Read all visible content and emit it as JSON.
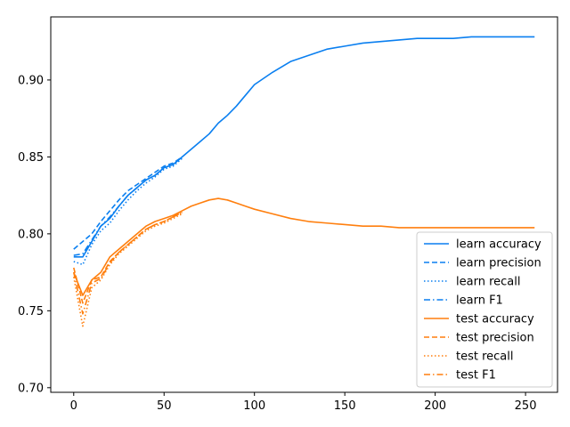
{
  "chart_data": {
    "type": "line",
    "title": "",
    "xlabel": "",
    "ylabel": "",
    "xlim": [
      -12.7,
      267.7
    ],
    "ylim": [
      0.697,
      0.941
    ],
    "x_ticks": [
      0,
      50,
      100,
      150,
      200,
      250
    ],
    "x_tick_labels": [
      "0",
      "50",
      "100",
      "150",
      "200",
      "250"
    ],
    "y_ticks": [
      0.7,
      0.75,
      0.8,
      0.85,
      0.9
    ],
    "y_tick_labels": [
      "0.70",
      "0.75",
      "0.80",
      "0.85",
      "0.90"
    ],
    "grid": false,
    "legend_position": "lower-right",
    "x_range": [
      0,
      255
    ],
    "series": [
      {
        "name": "learn accuracy",
        "color": "#0a7ff0",
        "dash": "solid",
        "x": [
          0,
          5,
          10,
          15,
          20,
          25,
          30,
          35,
          40,
          45,
          50,
          55,
          60,
          65,
          70,
          75,
          80,
          85,
          90,
          95,
          100,
          110,
          120,
          130,
          140,
          150,
          160,
          170,
          180,
          190,
          200,
          210,
          220,
          230,
          240,
          255
        ],
        "values": [
          0.785,
          0.785,
          0.795,
          0.805,
          0.81,
          0.818,
          0.825,
          0.83,
          0.835,
          0.838,
          0.843,
          0.845,
          0.85,
          0.855,
          0.86,
          0.865,
          0.872,
          0.877,
          0.883,
          0.89,
          0.897,
          0.905,
          0.912,
          0.916,
          0.92,
          0.922,
          0.924,
          0.925,
          0.926,
          0.927,
          0.927,
          0.927,
          0.928,
          0.928,
          0.928,
          0.928
        ]
      },
      {
        "name": "learn precision",
        "color": "#0a7ff0",
        "dash": "dashed",
        "x": [
          0,
          5,
          10,
          15,
          20,
          25,
          30,
          35,
          40,
          45,
          50,
          55,
          60
        ],
        "values": [
          0.79,
          0.795,
          0.8,
          0.808,
          0.815,
          0.822,
          0.828,
          0.832,
          0.836,
          0.84,
          0.844,
          0.846,
          0.85
        ]
      },
      {
        "name": "learn recall",
        "color": "#0a7ff0",
        "dash": "dotted",
        "x": [
          0,
          5,
          10,
          15,
          20,
          25,
          30,
          35,
          40,
          45,
          50,
          55,
          60
        ],
        "values": [
          0.782,
          0.78,
          0.793,
          0.802,
          0.807,
          0.815,
          0.822,
          0.828,
          0.833,
          0.837,
          0.842,
          0.844,
          0.849
        ]
      },
      {
        "name": "learn F1",
        "color": "#0a7ff0",
        "dash": "dashdot",
        "x": [
          0,
          5,
          10,
          15,
          20,
          25,
          30,
          35,
          40,
          45,
          50,
          55,
          60
        ],
        "values": [
          0.786,
          0.787,
          0.796,
          0.805,
          0.811,
          0.818,
          0.825,
          0.83,
          0.835,
          0.838,
          0.843,
          0.845,
          0.85
        ]
      },
      {
        "name": "test accuracy",
        "color": "#ff7f0e",
        "dash": "solid",
        "x": [
          0,
          5,
          10,
          15,
          20,
          25,
          30,
          35,
          40,
          45,
          50,
          55,
          60,
          65,
          70,
          75,
          80,
          85,
          90,
          95,
          100,
          110,
          120,
          130,
          140,
          150,
          160,
          170,
          180,
          190,
          200,
          210,
          220,
          230,
          240,
          255
        ],
        "values": [
          0.775,
          0.76,
          0.77,
          0.775,
          0.785,
          0.79,
          0.795,
          0.8,
          0.805,
          0.808,
          0.81,
          0.812,
          0.815,
          0.818,
          0.82,
          0.822,
          0.823,
          0.822,
          0.82,
          0.818,
          0.816,
          0.813,
          0.81,
          0.808,
          0.807,
          0.806,
          0.805,
          0.805,
          0.804,
          0.804,
          0.804,
          0.804,
          0.804,
          0.804,
          0.804,
          0.804
        ]
      },
      {
        "name": "test precision",
        "color": "#ff7f0e",
        "dash": "dashed",
        "x": [
          0,
          5,
          10,
          15,
          20,
          25,
          30,
          35,
          40,
          45,
          50,
          55,
          60
        ],
        "values": [
          0.778,
          0.755,
          0.77,
          0.772,
          0.782,
          0.788,
          0.793,
          0.798,
          0.803,
          0.806,
          0.808,
          0.811,
          0.814
        ]
      },
      {
        "name": "test recall",
        "color": "#ff7f0e",
        "dash": "dotted",
        "x": [
          0,
          5,
          10,
          15,
          20,
          25,
          30,
          35,
          40,
          45,
          50,
          55,
          60
        ],
        "values": [
          0.772,
          0.74,
          0.765,
          0.77,
          0.78,
          0.787,
          0.792,
          0.797,
          0.802,
          0.805,
          0.807,
          0.81,
          0.813
        ]
      },
      {
        "name": "test F1",
        "color": "#ff7f0e",
        "dash": "dashdot",
        "x": [
          0,
          5,
          10,
          15,
          20,
          25,
          30,
          35,
          40,
          45,
          50,
          55,
          60
        ],
        "values": [
          0.775,
          0.748,
          0.768,
          0.771,
          0.781,
          0.788,
          0.793,
          0.798,
          0.803,
          0.806,
          0.808,
          0.811,
          0.814
        ]
      }
    ]
  }
}
